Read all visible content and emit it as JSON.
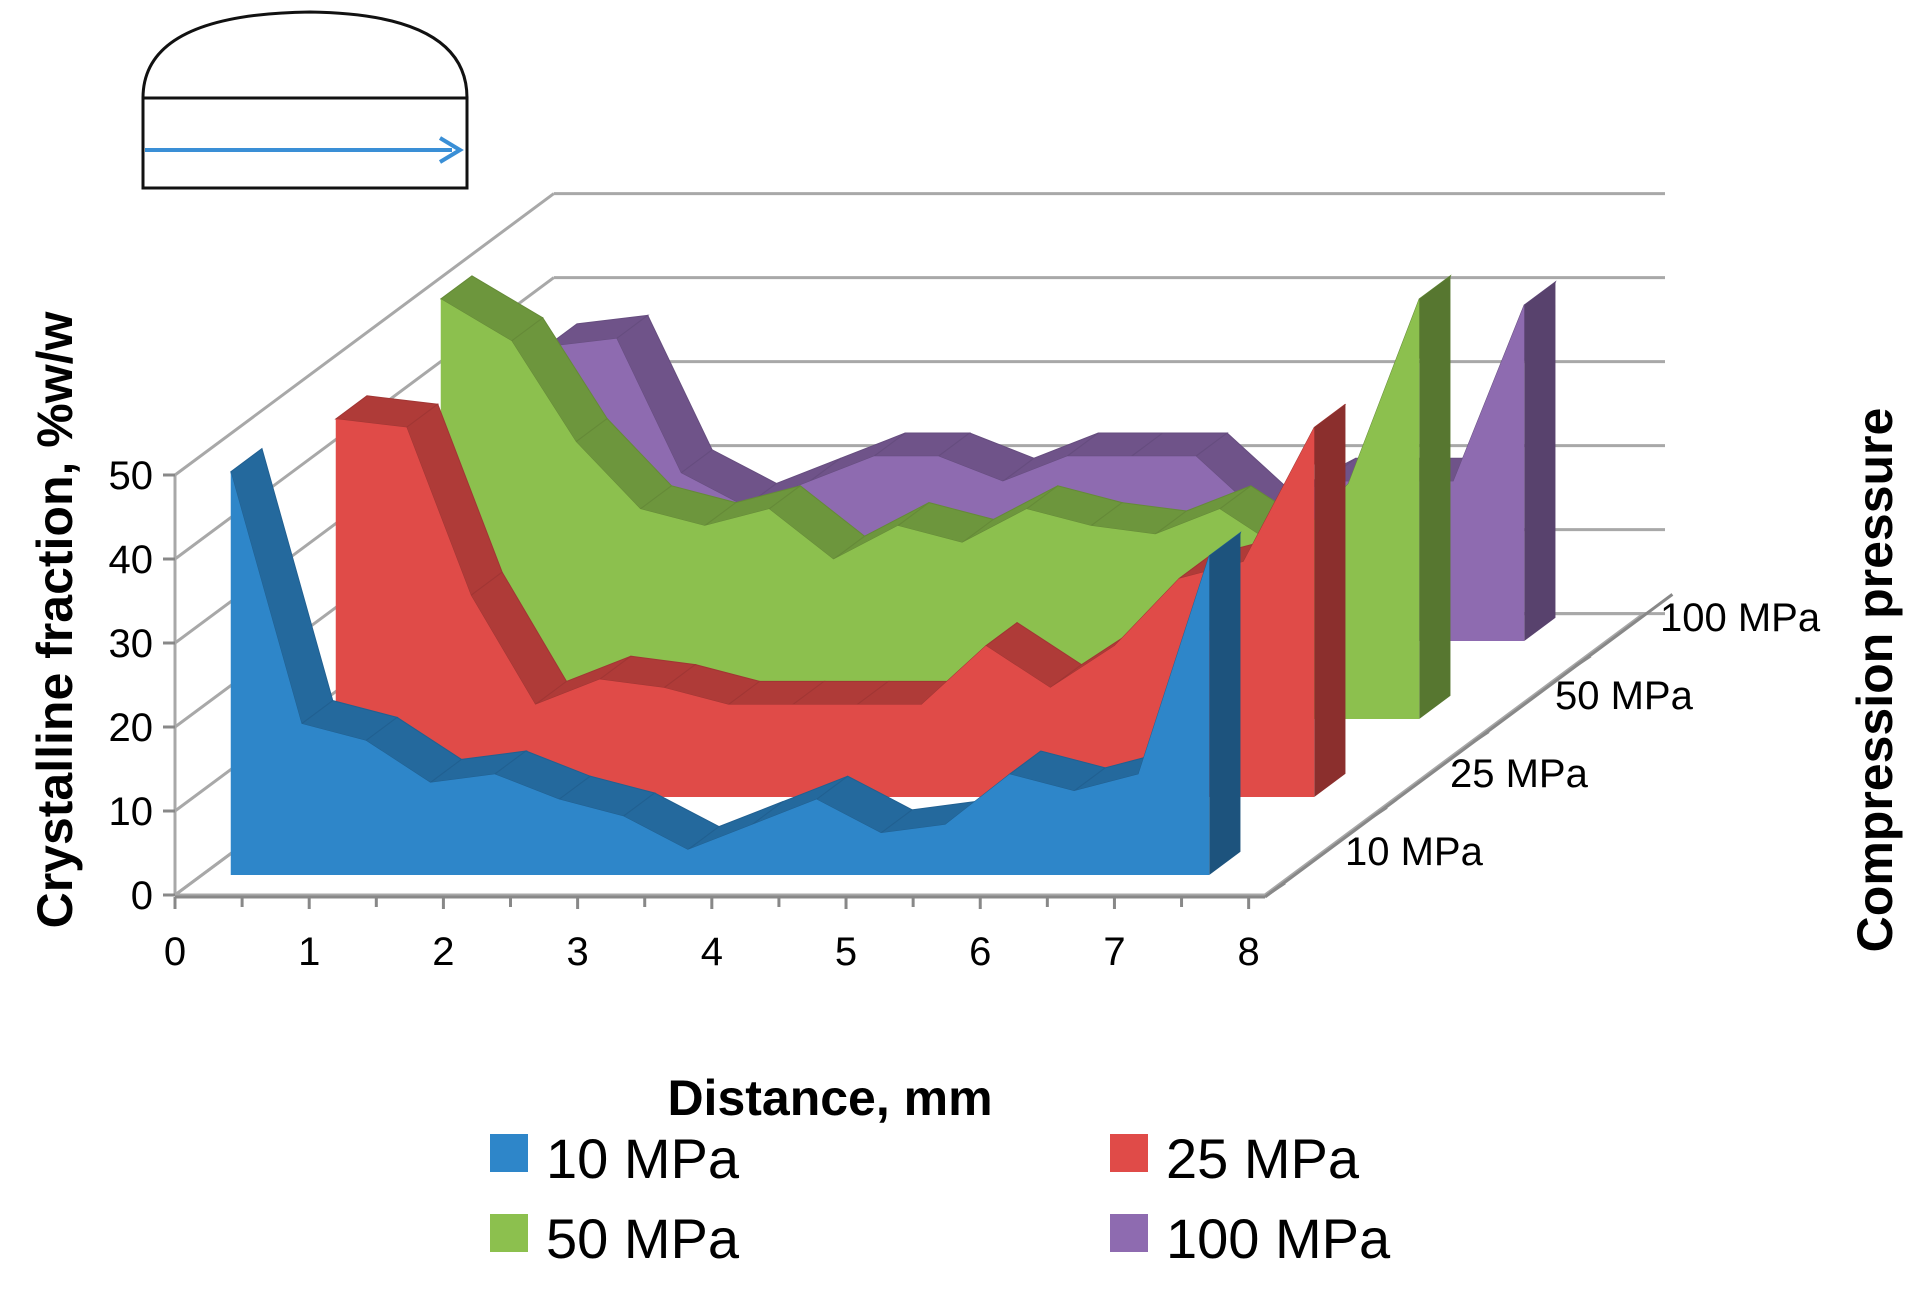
{
  "chart_data": {
    "type": "area",
    "style": "3d-ribbon",
    "title": "",
    "xlabel": "Distance, mm",
    "ylabel": "Crystalline fraction, %w/w",
    "zlabel": "Compression pressure",
    "xlim": [
      0,
      8
    ],
    "ylim": [
      0,
      50
    ],
    "x_ticks": [
      "0",
      "1",
      "2",
      "3",
      "4",
      "5",
      "6",
      "7",
      "8"
    ],
    "y_ticks": [
      "0",
      "10",
      "20",
      "30",
      "40",
      "50"
    ],
    "x": [
      0.25,
      0.75,
      1.25,
      1.75,
      2.25,
      2.75,
      3.25,
      3.75,
      4.25,
      4.75,
      5.25,
      5.75,
      6.25,
      6.75,
      7.25,
      7.75
    ],
    "series": [
      {
        "name": "10 MPa",
        "color": "#2e86c9",
        "values": [
          48,
          18,
          16,
          11,
          12,
          9,
          7,
          3,
          6,
          9,
          5,
          6,
          12,
          10,
          12,
          38
        ]
      },
      {
        "name": "25 MPa",
        "color": "#e04b48",
        "values": [
          45,
          44,
          24,
          11,
          14,
          13,
          11,
          11,
          11,
          11,
          18,
          13,
          18,
          26,
          28,
          44
        ]
      },
      {
        "name": "50 MPa",
        "color": "#8cc04e",
        "values": [
          50,
          45,
          33,
          25,
          23,
          25,
          19,
          23,
          21,
          25,
          23,
          22,
          25,
          20,
          28,
          50
        ]
      },
      {
        "name": "100 MPa",
        "color": "#8e6bb0",
        "values": [
          35,
          36,
          20,
          16,
          19,
          22,
          22,
          19,
          22,
          22,
          22,
          15,
          19,
          19,
          19,
          40
        ]
      }
    ],
    "legend": {
      "position": "bottom",
      "entries": [
        "10 MPa",
        "25 MPa",
        "50 MPa",
        "100 MPa"
      ]
    }
  },
  "icon": {
    "name": "tablet-cross-section-icon",
    "arrow_color": "#3a8fd6"
  }
}
